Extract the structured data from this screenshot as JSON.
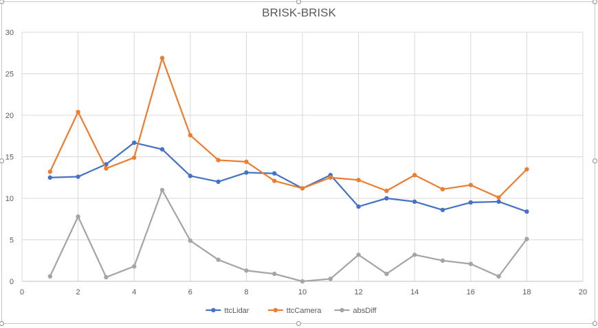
{
  "chart_data": {
    "type": "line",
    "title": "BRISK-BRISK",
    "xlabel": "",
    "ylabel": "",
    "xlim": [
      0,
      20
    ],
    "ylim": [
      0,
      30
    ],
    "xticks": [
      0,
      2,
      4,
      6,
      8,
      10,
      12,
      14,
      16,
      18,
      20
    ],
    "yticks": [
      0,
      5,
      10,
      15,
      20,
      25,
      30
    ],
    "grid": true,
    "legend_position": "bottom",
    "x": [
      1,
      2,
      3,
      4,
      5,
      6,
      7,
      8,
      9,
      10,
      11,
      12,
      13,
      14,
      15,
      16,
      17,
      18
    ],
    "series": [
      {
        "name": "ttcLidar",
        "color": "#4472c4",
        "values": [
          12.5,
          12.6,
          14.1,
          16.7,
          15.9,
          12.7,
          12.0,
          13.1,
          13.0,
          11.2,
          12.8,
          9.0,
          10.0,
          9.6,
          8.6,
          9.5,
          9.6,
          8.4
        ]
      },
      {
        "name": "ttcCamera",
        "color": "#ed7d31",
        "values": [
          13.2,
          20.4,
          13.6,
          14.9,
          26.9,
          17.6,
          14.6,
          14.4,
          12.1,
          11.2,
          12.5,
          12.2,
          10.9,
          12.8,
          11.1,
          11.6,
          10.1,
          13.5
        ]
      },
      {
        "name": "absDiff",
        "color": "#a5a5a5",
        "values": [
          0.6,
          7.8,
          0.5,
          1.8,
          11.0,
          4.9,
          2.6,
          1.3,
          0.9,
          0.0,
          0.3,
          3.2,
          0.9,
          3.2,
          2.5,
          2.1,
          0.6,
          5.1
        ]
      }
    ]
  }
}
